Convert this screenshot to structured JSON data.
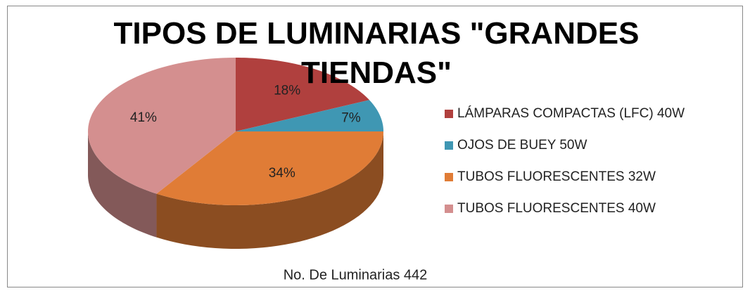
{
  "chart_data": {
    "type": "pie",
    "title": "TIPOS DE LUMINARIAS \"GRANDES TIENDAS\"",
    "categories": [
      "LÁMPARAS COMPACTAS (LFC) 40W",
      "OJOS DE BUEY 50W",
      "TUBOS FLUORESCENTES 32W",
      "TUBOS FLUORESCENTES 40W"
    ],
    "values": [
      18,
      7,
      34,
      41
    ],
    "value_labels": [
      "18%",
      "7%",
      "34%",
      "41%"
    ],
    "colors": [
      "#b0403e",
      "#3f97b3",
      "#e07c36",
      "#d48f8f"
    ],
    "annotation": "No. De Luminarias 442",
    "legend": "right"
  }
}
